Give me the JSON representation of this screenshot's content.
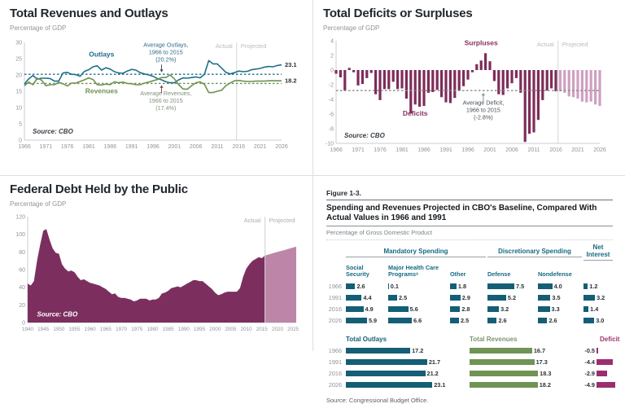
{
  "chart_data": [
    {
      "type": "line",
      "title": "Total Revenues and Outlays",
      "unit_label": "Percentage of GDP",
      "source_label": "Source: CBO",
      "actual_label": "Actual",
      "projected_label": "Projected",
      "x_start": 1966,
      "xlim": [
        1966,
        2026
      ],
      "ylim": [
        0,
        30
      ],
      "yticks": [
        0,
        5,
        10,
        15,
        20,
        25,
        30
      ],
      "xticks": [
        1966,
        1971,
        1976,
        1981,
        1986,
        1991,
        1996,
        2001,
        2006,
        2011,
        2016,
        2021,
        2026
      ],
      "divider_year": 2015.5,
      "series": [
        {
          "name": "Outlays",
          "color": "#1e6f8c",
          "end_label": "23.1",
          "values": [
            17.2,
            18.8,
            19.8,
            18.7,
            19.0,
            19.0,
            18.9,
            18.1,
            18.1,
            20.6,
            20.8,
            20.2,
            20.1,
            19.6,
            21.1,
            21.6,
            22.5,
            22.8,
            21.5,
            22.2,
            21.8,
            21.0,
            20.6,
            20.5,
            21.2,
            21.7,
            21.5,
            20.7,
            20.3,
            20.0,
            19.6,
            18.9,
            18.5,
            17.9,
            17.6,
            17.6,
            18.5,
            19.1,
            19.0,
            19.2,
            19.4,
            19.1,
            20.2,
            24.4,
            23.4,
            23.4,
            22.1,
            20.8,
            20.3,
            20.7,
            21.2,
            21.0,
            21.1,
            21.6,
            21.8,
            22.0,
            22.4,
            22.6,
            22.5,
            22.9,
            23.1
          ]
        },
        {
          "name": "Revenues",
          "color": "#6e9150",
          "end_label": "18.2",
          "values": [
            16.7,
            17.8,
            17.0,
            19.0,
            18.4,
            16.7,
            17.0,
            17.0,
            17.7,
            17.3,
            16.6,
            17.5,
            17.5,
            18.0,
            18.5,
            19.1,
            18.6,
            17.0,
            16.9,
            17.2,
            17.0,
            17.9,
            17.6,
            17.8,
            17.4,
            17.3,
            17.0,
            17.0,
            17.5,
            17.8,
            18.2,
            18.6,
            19.2,
            19.2,
            20.0,
            18.8,
            17.0,
            15.7,
            15.6,
            16.7,
            17.6,
            17.9,
            17.1,
            14.6,
            14.6,
            15.0,
            15.3,
            16.7,
            17.5,
            18.2,
            18.3,
            18.1,
            18.0,
            18.0,
            18.1,
            18.1,
            18.1,
            18.2,
            18.2,
            18.2,
            18.2
          ]
        }
      ],
      "avg_lines": [
        {
          "value": 20.2,
          "color": "#1e6f8c"
        },
        {
          "value": 17.4,
          "color": "#6e9150"
        }
      ],
      "annotations": [
        {
          "lines": [
            "Outlays"
          ],
          "x": 1984,
          "y": 25.6,
          "color": "#1e6f8c",
          "bold": true,
          "size": 8.5,
          "anchor": "middle"
        },
        {
          "lines": [
            "Revenues"
          ],
          "x": 1984,
          "y": 14.4,
          "color": "#6e9150",
          "bold": true,
          "size": 8.5,
          "anchor": "middle"
        },
        {
          "lines": [
            "Average Outlays,",
            "1966 to 2015",
            "(20.2%)"
          ],
          "x": 1999,
          "y": 28.6,
          "color": "#2e6d87",
          "bold": false,
          "size": 7.2,
          "anchor": "middle"
        },
        {
          "lines": [
            "Average Revenues,",
            "1966 to 2015",
            "(17.4%)"
          ],
          "x": 1999,
          "y": 13.8,
          "color": "#82917a",
          "bold": false,
          "size": 7.2,
          "anchor": "middle"
        }
      ],
      "arrows": [
        {
          "x": 1998,
          "from": 23.2,
          "to": 20.8,
          "color": "#3c4650"
        },
        {
          "x": 1998,
          "from": 14.4,
          "to": 16.9,
          "color": "#7a4a52"
        }
      ]
    },
    {
      "type": "bar",
      "title": "Total Deficits or Surpluses",
      "unit_label": "Percentage of GDP",
      "source_label": "Source: CBO",
      "actual_label": "Actual",
      "projected_label": "Projected",
      "x_start": 1966,
      "xlim": [
        1966,
        2026
      ],
      "ylim": [
        -10,
        4
      ],
      "yticks": [
        4,
        2,
        0,
        -2,
        -4,
        -6,
        -8,
        -10
      ],
      "xticks": [
        1966,
        1971,
        1976,
        1981,
        1986,
        1991,
        1996,
        2001,
        2006,
        2011,
        2016,
        2021,
        2026
      ],
      "divider_year": 2016.5,
      "actual_through": 2016,
      "bar_color_actual": "#7e2d5a",
      "bar_color_projected": "#cfa0c0",
      "values": [
        -0.5,
        -1.0,
        -2.8,
        0.3,
        -0.3,
        -2.1,
        -1.9,
        -1.1,
        -0.4,
        -3.3,
        -4.1,
        -2.6,
        -2.6,
        -1.6,
        -2.6,
        -2.5,
        -3.9,
        -5.9,
        -4.7,
        -5.0,
        -4.9,
        -3.1,
        -3.0,
        -2.7,
        -3.7,
        -4.4,
        -4.5,
        -3.8,
        -2.8,
        -2.2,
        -1.3,
        -0.3,
        0.8,
        1.3,
        2.3,
        1.2,
        -1.5,
        -3.3,
        -3.4,
        -2.5,
        -1.8,
        -1.1,
        -3.1,
        -9.8,
        -8.7,
        -8.5,
        -6.8,
        -4.1,
        -2.8,
        -2.5,
        -2.9,
        -2.9,
        -3.1,
        -3.6,
        -3.7,
        -3.9,
        -4.3,
        -4.4,
        -4.3,
        -4.7,
        -4.9
      ],
      "avg_lines": [
        {
          "value": -2.8,
          "color": "#85898c"
        }
      ],
      "annotations": [
        {
          "lines": [
            "Surpluses"
          ],
          "x": 1999,
          "y": 3.4,
          "color": "#8c2f62",
          "bold": true,
          "size": 8.5,
          "anchor": "middle"
        },
        {
          "lines": [
            "Deficits"
          ],
          "x": 1984,
          "y": -6.2,
          "color": "#8c2f62",
          "bold": true,
          "size": 8.5,
          "anchor": "middle"
        },
        {
          "lines": [
            "Average Deficit,",
            "1966 to 2015",
            "(-2.8%)"
          ],
          "x": 1999.5,
          "y": -4.7,
          "color": "#47525a",
          "bold": false,
          "size": 7.2,
          "anchor": "middle"
        }
      ],
      "arrows": [
        {
          "x": 1999.5,
          "from": -4.3,
          "to": -3.1,
          "color": "#85898c"
        }
      ]
    },
    {
      "type": "area",
      "title": "Federal Debt Held by the Public",
      "unit_label": "Percentage of GDP",
      "source_label": "Source: CBO",
      "actual_label": "Actual",
      "projected_label": "Projected",
      "x_start": 1940,
      "xlim": [
        1940,
        2026
      ],
      "ylim": [
        0,
        120
      ],
      "yticks": [
        0,
        20,
        40,
        60,
        80,
        100,
        120
      ],
      "xticks": [
        1940,
        1945,
        1950,
        1955,
        1960,
        1965,
        1970,
        1975,
        1980,
        1985,
        1990,
        1995,
        2000,
        2005,
        2010,
        2015,
        2020,
        2025
      ],
      "divider_year": 2016,
      "area_color_actual": "#7c2f5f",
      "area_color_projected": "#bd86a8",
      "values": [
        44,
        42,
        47,
        70,
        88,
        104,
        106,
        94,
        84,
        79,
        78,
        66,
        61,
        58,
        59,
        57,
        52,
        48,
        49,
        47,
        45,
        44,
        43,
        42,
        40,
        38,
        35,
        32,
        33,
        29,
        28,
        28,
        27,
        26,
        24,
        25,
        27,
        27,
        27,
        25,
        26,
        26,
        28,
        33,
        34,
        36,
        39,
        40,
        41,
        40,
        42,
        44,
        46,
        48,
        48,
        47,
        47,
        44,
        41,
        38,
        34,
        31,
        32,
        34,
        35,
        35,
        35,
        35,
        39,
        52,
        61,
        66,
        70,
        72,
        74,
        73,
        76,
        77,
        78,
        79,
        80,
        81,
        82,
        83,
        84,
        85,
        86
      ]
    },
    {
      "type": "table",
      "figure_label": "Figure 1-3.",
      "title": "Spending and Revenues Projected in CBO's Baseline, Compared With Actual Values in 1966 and 1991",
      "unit_label": "Percentage of Gross Domestic Product",
      "source_label": "Source: Congressional Budget Office.",
      "bar_color": "#145e76",
      "groups": [
        {
          "label": "Mandatory Spending",
          "span": 3
        },
        {
          "label": "Discretionary Spending",
          "span": 2
        },
        {
          "label": "Net Interest",
          "span": 1
        }
      ],
      "columns": [
        "Social Security",
        "Major Health Care Programsᵃ",
        "Other",
        "Defense",
        "Nondefense",
        ""
      ],
      "rows": [
        {
          "year": "1966",
          "values": [
            2.6,
            0.1,
            1.8,
            7.5,
            4.0,
            1.2
          ]
        },
        {
          "year": "1991",
          "values": [
            4.4,
            2.5,
            2.9,
            5.2,
            3.5,
            3.2
          ]
        },
        {
          "year": "2016",
          "values": [
            4.9,
            5.6,
            2.8,
            3.2,
            3.3,
            1.4
          ]
        },
        {
          "year": "2026",
          "values": [
            5.9,
            6.6,
            2.5,
            2.6,
            2.6,
            3.0
          ]
        }
      ],
      "totals": {
        "headers": [
          {
            "label": "Total Outlays",
            "color": "#145e76"
          },
          {
            "label": "Total Revenues",
            "color": "#7d9470"
          },
          {
            "label": "Deficit",
            "color": "#a03571"
          }
        ],
        "outlays_color": "#145e76",
        "revenues_color": "#6f9454",
        "deficit_color": "#9c2d6e",
        "rows": [
          {
            "year": "1966",
            "outlays": 17.2,
            "revenues": 16.7,
            "deficit": -0.5
          },
          {
            "year": "1991",
            "outlays": 21.7,
            "revenues": 17.3,
            "deficit": -4.4
          },
          {
            "year": "2016",
            "outlays": 21.2,
            "revenues": 18.3,
            "deficit": -2.9
          },
          {
            "year": "2026",
            "outlays": 23.1,
            "revenues": 18.2,
            "deficit": -4.9
          }
        ]
      }
    }
  ]
}
